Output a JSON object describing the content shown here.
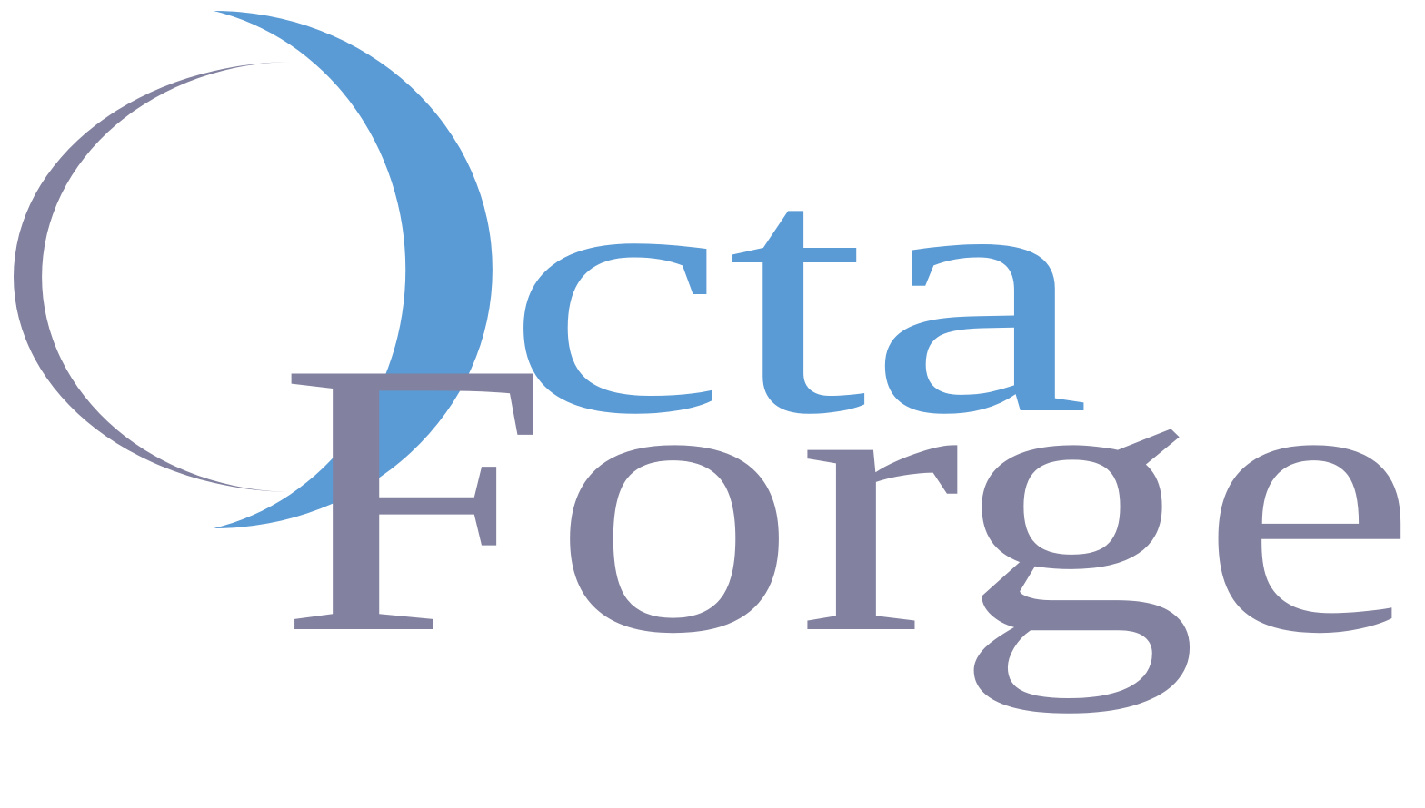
{
  "logo": {
    "top_word": "cta",
    "bottom_word": "Forge"
  }
}
